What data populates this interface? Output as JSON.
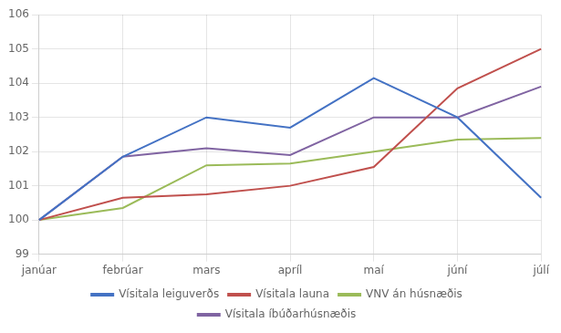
{
  "chart_data": {
    "type": "line",
    "categories": [
      "janúar",
      "febrúar",
      "mars",
      "apríl",
      "maí",
      "júní",
      "júlí"
    ],
    "series": [
      {
        "name": "Vísitala leiguverðs",
        "color": "#4472C4",
        "values": [
          100.0,
          101.85,
          103.0,
          102.7,
          104.15,
          103.0,
          100.65
        ]
      },
      {
        "name": "Vísitala launa",
        "color": "#C0504D",
        "values": [
          100.0,
          100.65,
          100.75,
          101.0,
          101.55,
          103.85,
          105.0
        ]
      },
      {
        "name": "VNV án húsnæðis",
        "color": "#9BBB59",
        "values": [
          100.0,
          100.35,
          101.6,
          101.65,
          102.0,
          102.35,
          102.4
        ]
      },
      {
        "name": "Vísitala íbúðarhúsnæðis",
        "color": "#8064A2",
        "values": [
          100.0,
          101.85,
          102.1,
          101.9,
          103.0,
          103.0,
          103.9
        ]
      }
    ],
    "ylim": [
      99,
      106
    ],
    "yticks": [
      99,
      100,
      101,
      102,
      103,
      104,
      105,
      106
    ],
    "grid": true,
    "legend": "bottom"
  }
}
